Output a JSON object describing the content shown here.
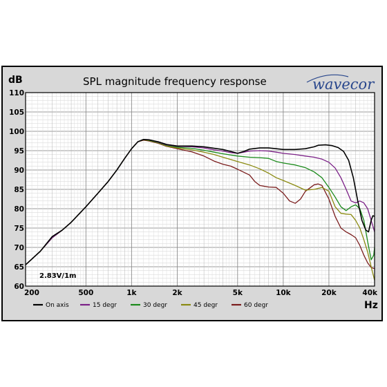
{
  "chart_data": {
    "type": "line",
    "title": "SPL magnitude frequency response",
    "ylabel": "dB",
    "xlabel": "Hz",
    "brand": "wavecor",
    "annotation": "2.83V/1m",
    "x_scale": "log",
    "xlim": [
      200,
      40000
    ],
    "ylim": [
      60,
      110
    ],
    "grid": true,
    "legend_position": "bottom",
    "y_ticks": [
      "60",
      "65",
      "70",
      "75",
      "80",
      "85",
      "90",
      "95",
      "100",
      "105",
      "110"
    ],
    "x_ticks": [
      {
        "value": 200,
        "label": "200"
      },
      {
        "value": 500,
        "label": "500"
      },
      {
        "value": 1000,
        "label": "1k"
      },
      {
        "value": 2000,
        "label": "2k"
      },
      {
        "value": 5000,
        "label": "5k"
      },
      {
        "value": 10000,
        "label": "10k"
      },
      {
        "value": 20000,
        "label": "20k"
      },
      {
        "value": 40000,
        "label": "40k"
      }
    ],
    "series": [
      {
        "name": "On axis",
        "color": "#000000",
        "points": [
          [
            200,
            65.5
          ],
          [
            250,
            69
          ],
          [
            300,
            72.8
          ],
          [
            350,
            74.5
          ],
          [
            400,
            76.5
          ],
          [
            500,
            80.5
          ],
          [
            600,
            84
          ],
          [
            700,
            87
          ],
          [
            800,
            90
          ],
          [
            900,
            93
          ],
          [
            1000,
            95.5
          ],
          [
            1100,
            97.3
          ],
          [
            1200,
            97.9
          ],
          [
            1300,
            97.8
          ],
          [
            1500,
            97.3
          ],
          [
            1700,
            96.6
          ],
          [
            2000,
            96.2
          ],
          [
            2500,
            96.2
          ],
          [
            3000,
            96
          ],
          [
            3500,
            95.6
          ],
          [
            4000,
            95.3
          ],
          [
            4500,
            94.8
          ],
          [
            5000,
            94.3
          ],
          [
            5500,
            94.8
          ],
          [
            6000,
            95.4
          ],
          [
            7000,
            95.7
          ],
          [
            8000,
            95.7
          ],
          [
            9000,
            95.5
          ],
          [
            10000,
            95.3
          ],
          [
            12000,
            95.3
          ],
          [
            14000,
            95.5
          ],
          [
            16000,
            96
          ],
          [
            17000,
            96.4
          ],
          [
            19000,
            96.5
          ],
          [
            21000,
            96.3
          ],
          [
            23000,
            95.8
          ],
          [
            25000,
            94.8
          ],
          [
            27000,
            92.5
          ],
          [
            29000,
            88
          ],
          [
            31000,
            82
          ],
          [
            33000,
            77
          ],
          [
            35000,
            74.5
          ],
          [
            36500,
            74
          ],
          [
            38000,
            77
          ],
          [
            39000,
            78.2
          ],
          [
            40000,
            78
          ]
        ]
      },
      {
        "name": "15 degr",
        "color": "#7a1f86",
        "points": [
          [
            200,
            65.5
          ],
          [
            250,
            69
          ],
          [
            300,
            72.5
          ],
          [
            350,
            74.5
          ],
          [
            400,
            76.5
          ],
          [
            500,
            80.5
          ],
          [
            600,
            84
          ],
          [
            700,
            87
          ],
          [
            800,
            90
          ],
          [
            900,
            93
          ],
          [
            1000,
            95.5
          ],
          [
            1100,
            97.3
          ],
          [
            1200,
            97.9
          ],
          [
            1300,
            97.8
          ],
          [
            1500,
            97.2
          ],
          [
            1700,
            96.5
          ],
          [
            2000,
            96.1
          ],
          [
            2500,
            96
          ],
          [
            3000,
            95.7
          ],
          [
            3500,
            95.2
          ],
          [
            4000,
            94.9
          ],
          [
            4500,
            94.5
          ],
          [
            5000,
            94.3
          ],
          [
            5500,
            94.6
          ],
          [
            6000,
            94.9
          ],
          [
            7000,
            95
          ],
          [
            8000,
            94.9
          ],
          [
            9000,
            94.6
          ],
          [
            10000,
            94.3
          ],
          [
            12000,
            94
          ],
          [
            14000,
            93.6
          ],
          [
            16000,
            93.3
          ],
          [
            18000,
            92.8
          ],
          [
            20000,
            92
          ],
          [
            22000,
            90.5
          ],
          [
            24000,
            88
          ],
          [
            26000,
            85
          ],
          [
            28000,
            82
          ],
          [
            30000,
            81.5
          ],
          [
            32000,
            82
          ],
          [
            34000,
            81.5
          ],
          [
            36000,
            80
          ],
          [
            38000,
            77
          ],
          [
            40000,
            74
          ]
        ]
      },
      {
        "name": "30 degr",
        "color": "#1a8a1a",
        "points": [
          [
            200,
            65.5
          ],
          [
            250,
            69
          ],
          [
            300,
            72.5
          ],
          [
            350,
            74.5
          ],
          [
            400,
            76.5
          ],
          [
            500,
            80.5
          ],
          [
            600,
            84
          ],
          [
            700,
            87
          ],
          [
            800,
            90
          ],
          [
            900,
            93
          ],
          [
            1000,
            95.5
          ],
          [
            1100,
            97.3
          ],
          [
            1200,
            97.9
          ],
          [
            1300,
            97.7
          ],
          [
            1500,
            97.1
          ],
          [
            1700,
            96.4
          ],
          [
            2000,
            95.9
          ],
          [
            2500,
            95.6
          ],
          [
            3000,
            95.1
          ],
          [
            3500,
            94.6
          ],
          [
            4000,
            94.2
          ],
          [
            5000,
            93.6
          ],
          [
            6000,
            93.3
          ],
          [
            7000,
            93.2
          ],
          [
            8000,
            93
          ],
          [
            9000,
            92.2
          ],
          [
            10000,
            91.8
          ],
          [
            12000,
            91.3
          ],
          [
            14000,
            90.6
          ],
          [
            16000,
            89.5
          ],
          [
            18000,
            88
          ],
          [
            20000,
            85.5
          ],
          [
            22000,
            83
          ],
          [
            24000,
            80.5
          ],
          [
            26000,
            79.5
          ],
          [
            28000,
            80.5
          ],
          [
            30000,
            81
          ],
          [
            32000,
            80
          ],
          [
            34000,
            77
          ],
          [
            36000,
            71.5
          ],
          [
            38000,
            66.8
          ],
          [
            39500,
            68
          ],
          [
            40000,
            70
          ]
        ]
      },
      {
        "name": "45 degr",
        "color": "#8a8a10",
        "points": [
          [
            200,
            65.5
          ],
          [
            250,
            69
          ],
          [
            300,
            72.5
          ],
          [
            350,
            74.5
          ],
          [
            400,
            76.5
          ],
          [
            500,
            80.5
          ],
          [
            600,
            84
          ],
          [
            700,
            87
          ],
          [
            800,
            90
          ],
          [
            900,
            93
          ],
          [
            1000,
            95.5
          ],
          [
            1100,
            97.3
          ],
          [
            1200,
            97.8
          ],
          [
            1300,
            97.6
          ],
          [
            1500,
            97
          ],
          [
            1700,
            96.2
          ],
          [
            2000,
            95.7
          ],
          [
            2500,
            95.2
          ],
          [
            3000,
            94.6
          ],
          [
            3500,
            94
          ],
          [
            4000,
            93.3
          ],
          [
            5000,
            92.2
          ],
          [
            6000,
            91.3
          ],
          [
            7000,
            90.3
          ],
          [
            8000,
            89.2
          ],
          [
            9000,
            88
          ],
          [
            10000,
            87.3
          ],
          [
            12000,
            86
          ],
          [
            14000,
            84.8
          ],
          [
            16000,
            85
          ],
          [
            18000,
            85.5
          ],
          [
            20000,
            84.5
          ],
          [
            22000,
            80.5
          ],
          [
            24000,
            78.8
          ],
          [
            26000,
            78.6
          ],
          [
            28000,
            78.5
          ],
          [
            30000,
            77
          ],
          [
            32000,
            75
          ],
          [
            34000,
            72
          ],
          [
            36000,
            68.8
          ],
          [
            38000,
            65
          ],
          [
            40000,
            61.5
          ]
        ]
      },
      {
        "name": "60 degr",
        "color": "#7a1c1c",
        "points": [
          [
            200,
            65.5
          ],
          [
            250,
            69
          ],
          [
            300,
            72.5
          ],
          [
            350,
            74.5
          ],
          [
            400,
            76.5
          ],
          [
            500,
            80.5
          ],
          [
            600,
            84
          ],
          [
            700,
            87
          ],
          [
            800,
            90
          ],
          [
            900,
            93
          ],
          [
            1000,
            95.5
          ],
          [
            1100,
            97.3
          ],
          [
            1200,
            97.7
          ],
          [
            1300,
            97.5
          ],
          [
            1500,
            96.9
          ],
          [
            1700,
            96.1
          ],
          [
            2000,
            95.5
          ],
          [
            2500,
            94.7
          ],
          [
            3000,
            93.6
          ],
          [
            3500,
            92.3
          ],
          [
            4000,
            91.5
          ],
          [
            4500,
            91
          ],
          [
            5000,
            90.2
          ],
          [
            6000,
            88.7
          ],
          [
            6500,
            87
          ],
          [
            7000,
            86
          ],
          [
            8000,
            85.6
          ],
          [
            9000,
            85.5
          ],
          [
            10000,
            84
          ],
          [
            11000,
            82
          ],
          [
            12000,
            81.4
          ],
          [
            13000,
            82.5
          ],
          [
            14000,
            84.5
          ],
          [
            16000,
            86.2
          ],
          [
            17000,
            86.4
          ],
          [
            18000,
            86
          ],
          [
            20000,
            82.5
          ],
          [
            22000,
            78
          ],
          [
            24000,
            75
          ],
          [
            26000,
            74
          ],
          [
            28000,
            73.3
          ],
          [
            30000,
            72.5
          ],
          [
            32000,
            70.5
          ],
          [
            34000,
            68
          ],
          [
            36000,
            66
          ],
          [
            38000,
            64.8
          ],
          [
            40000,
            64.5
          ]
        ]
      }
    ]
  }
}
